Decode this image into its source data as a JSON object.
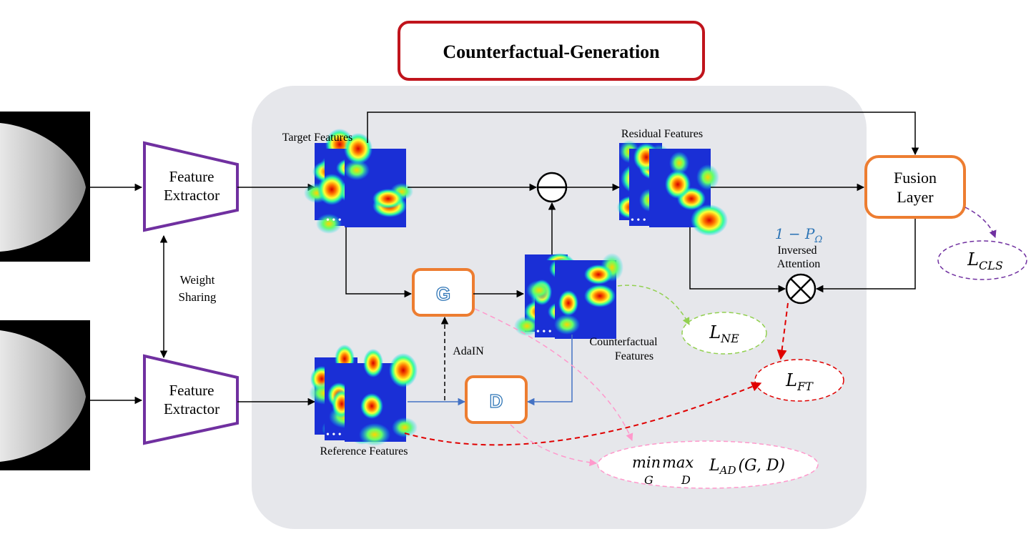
{
  "title": "Counterfactual-Generation",
  "nodes": {
    "feature_extractor_top": "Feature Extractor",
    "feature_extractor_bottom": "Feature Extractor",
    "weight_sharing": "Weight Sharing",
    "target_features": "Target Features",
    "residual_features": "Residual Features",
    "reference_features": "Reference Features",
    "counterfactual_features": "Counterfactual Features",
    "generator": "G",
    "discriminator": "D",
    "adain": "AdaIN",
    "fusion_layer": "Fusion Layer",
    "inversed_attention": "Inversed Attention",
    "inversed_attention_formula": "1 − P",
    "inversed_attention_subscript": "Ω"
  },
  "losses": {
    "cls": {
      "main": "L",
      "sub": "CLS"
    },
    "ne": {
      "main": "L",
      "sub": "NE"
    },
    "ft": {
      "main": "L",
      "sub": "FT"
    },
    "ad": {
      "min": "min",
      "max": "max",
      "under_min": "G",
      "under_max": "D",
      "main": "L",
      "sub": "AD",
      "args": "(G, D)"
    }
  },
  "colors": {
    "title_border": "#c0141c",
    "panel": "#e6e7eb",
    "extractor": "#7030a0",
    "module": "#ed7d31",
    "loss_cls": "#7030a0",
    "loss_ne": "#92d050",
    "loss_ft": "#e00000",
    "loss_ad": "#ff99cc",
    "blue_arrow": "#4472c4",
    "formula_blue": "#2e75b6"
  }
}
